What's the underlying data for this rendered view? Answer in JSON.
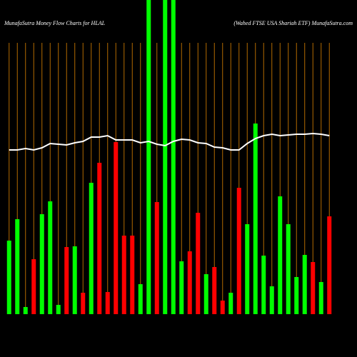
{
  "chart_data": {
    "type": "bar",
    "title": "MunafaSutra  Money Flow  Charts for HLAL",
    "subtitle": "(Wahed FTSE USA Shariah ETF) MunafaSutra.com",
    "categories": [
      null,
      null,
      null,
      null,
      null,
      null,
      null,
      null,
      null,
      null,
      null,
      null,
      null,
      null,
      null,
      null,
      null,
      null,
      null,
      null,
      null,
      null,
      null,
      null,
      null,
      null,
      null,
      null,
      null,
      null,
      null,
      null,
      null,
      null,
      null,
      null,
      null,
      null,
      null,
      null
    ],
    "values": [
      103,
      133,
      10,
      77,
      140,
      158,
      13,
      94,
      95,
      30,
      184,
      212,
      31,
      241,
      110,
      110,
      42,
      450,
      157,
      450,
      450,
      74,
      88,
      142,
      56,
      66,
      19,
      30,
      177,
      126,
      267,
      82,
      39,
      165,
      126,
      52,
      83,
      73,
      45,
      137
    ],
    "colors": [
      "#00ff00",
      "#00ff00",
      "#00ff00",
      "#ff0000",
      "#00ff00",
      "#00ff00",
      "#00ff00",
      "#ff0000",
      "#00ff00",
      "#ff0000",
      "#00ff00",
      "#ff0000",
      "#ff0000",
      "#ff0000",
      "#ff0000",
      "#ff0000",
      "#00ff00",
      "#00ff00",
      "#ff0000",
      "#00ff00",
      "#00ff00",
      "#00ff00",
      "#ff0000",
      "#ff0000",
      "#00ff00",
      "#ff0000",
      "#ff0000",
      "#00ff00",
      "#ff0000",
      "#00ff00",
      "#00ff00",
      "#00ff00",
      "#00ff00",
      "#00ff00",
      "#00ff00",
      "#00ff00",
      "#00ff00",
      "#ff0000",
      "#00ff00",
      "#ff0000"
    ],
    "price": [
      230,
      230,
      232,
      230,
      233,
      239,
      238,
      237,
      240,
      242,
      248,
      248,
      250,
      244,
      244,
      244,
      240,
      242,
      238,
      236,
      242,
      245,
      244,
      240,
      239,
      234,
      233,
      230,
      230,
      239,
      246,
      250,
      252,
      250,
      251,
      252,
      252,
      253,
      252,
      250
    ],
    "price_color": "#ffffff",
    "grid_color": "#b36b00",
    "ylim": [
      0,
      440
    ],
    "grid": true
  }
}
